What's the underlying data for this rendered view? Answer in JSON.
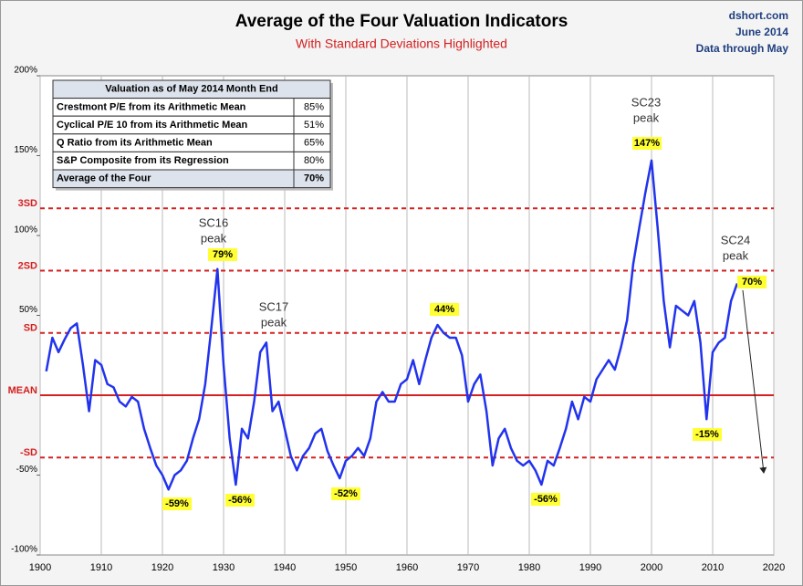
{
  "chart_data": {
    "type": "line",
    "title": "Average of the Four Valuation Indicators",
    "subtitle": "With Standard Deviations Highlighted",
    "source": [
      "dshort.com",
      "June 2014",
      "Data through May"
    ],
    "x": [
      1901,
      1902,
      1903,
      1904,
      1905,
      1906,
      1907,
      1908,
      1909,
      1910,
      1911,
      1912,
      1913,
      1914,
      1915,
      1916,
      1917,
      1918,
      1919,
      1920,
      1921,
      1922,
      1923,
      1924,
      1925,
      1926,
      1927,
      1928,
      1929,
      1930,
      1931,
      1932,
      1933,
      1934,
      1935,
      1936,
      1937,
      1938,
      1939,
      1940,
      1941,
      1942,
      1943,
      1944,
      1945,
      1946,
      1947,
      1948,
      1949,
      1950,
      1951,
      1952,
      1953,
      1954,
      1955,
      1956,
      1957,
      1958,
      1959,
      1960,
      1961,
      1962,
      1963,
      1964,
      1965,
      1966,
      1967,
      1968,
      1969,
      1970,
      1971,
      1972,
      1973,
      1974,
      1975,
      1976,
      1977,
      1978,
      1979,
      1980,
      1981,
      1982,
      1983,
      1984,
      1985,
      1986,
      1987,
      1988,
      1989,
      1990,
      1991,
      1992,
      1993,
      1994,
      1995,
      1996,
      1997,
      1998,
      1999,
      2000,
      2001,
      2002,
      2003,
      2004,
      2005,
      2006,
      2007,
      2008,
      2009,
      2010,
      2011,
      2012,
      2013,
      2014
    ],
    "series": [
      {
        "name": "Average of the Four",
        "color": "#2233ee",
        "values": [
          15,
          36,
          27,
          35,
          42,
          45,
          19,
          -10,
          22,
          19,
          7,
          5,
          -4,
          -7,
          -1,
          -4,
          -21,
          -33,
          -44,
          -50,
          -59,
          -50,
          -47,
          -41,
          -27,
          -15,
          7,
          42,
          79,
          19,
          -27,
          -56,
          -21,
          -27,
          -4,
          27,
          33,
          -10,
          -4,
          -21,
          -38,
          -47,
          -38,
          -33,
          -24,
          -21,
          -35,
          -44,
          -52,
          -41,
          -38,
          -33,
          -38,
          -27,
          -4,
          2,
          -4,
          -4,
          7,
          10,
          22,
          7,
          22,
          36,
          44,
          39,
          36,
          36,
          25,
          -4,
          7,
          13,
          -10,
          -44,
          -27,
          -21,
          -33,
          -41,
          -44,
          -41,
          -47,
          -56,
          -41,
          -44,
          -33,
          -21,
          -4,
          -15,
          -1,
          -4,
          10,
          16,
          22,
          16,
          30,
          47,
          82,
          105,
          127,
          147,
          105,
          59,
          30,
          56,
          53,
          50,
          59,
          33,
          -15,
          27,
          33,
          36,
          59,
          70
        ]
      }
    ],
    "xlim": [
      1900,
      2020
    ],
    "xticks": [
      1900,
      1910,
      1920,
      1930,
      1940,
      1950,
      1960,
      1970,
      1980,
      1990,
      2000,
      2010,
      2020
    ],
    "ylim": [
      -100,
      200
    ],
    "yticks": [
      {
        "value": 200,
        "label": "200%"
      },
      {
        "value": 150,
        "label": "150%"
      },
      {
        "value": 100,
        "label": "100%"
      },
      {
        "value": 50,
        "label": "50%"
      },
      {
        "value": -50,
        "label": "-50%"
      },
      {
        "value": -100,
        "label": "-100%"
      }
    ],
    "ref_lines": [
      {
        "value": 117,
        "label": "3SD",
        "dashed": true
      },
      {
        "value": 78,
        "label": "2SD",
        "dashed": true
      },
      {
        "value": 39,
        "label": "SD",
        "dashed": true
      },
      {
        "value": 0,
        "label": "MEAN",
        "dashed": false
      },
      {
        "value": -39,
        "label": "-SD",
        "dashed": true
      }
    ],
    "ref_color": "#d42020",
    "grid": "x",
    "annotations": [
      [
        "SC16",
        "peak"
      ],
      [
        "SC17",
        "peak"
      ],
      [
        "SC23",
        "peak"
      ],
      [
        "SC24",
        "peak"
      ]
    ],
    "highlights": [
      "79%",
      "-59%",
      "-56%",
      "-52%",
      "44%",
      "-56%",
      "147%",
      "-15%",
      "70%"
    ],
    "table": {
      "header": "Valuation as of May 2014 Month End",
      "rows": [
        [
          "Crestmont P/E from its Arithmetic Mean",
          "85%"
        ],
        [
          "Cyclical P/E 10 from its Arithmetic Mean",
          "51%"
        ],
        [
          "Q Ratio from its Arithmetic Mean",
          "65%"
        ],
        [
          "S&P Composite from its Regression",
          "80%"
        ],
        [
          "Average of the Four",
          "70%"
        ]
      ]
    }
  }
}
